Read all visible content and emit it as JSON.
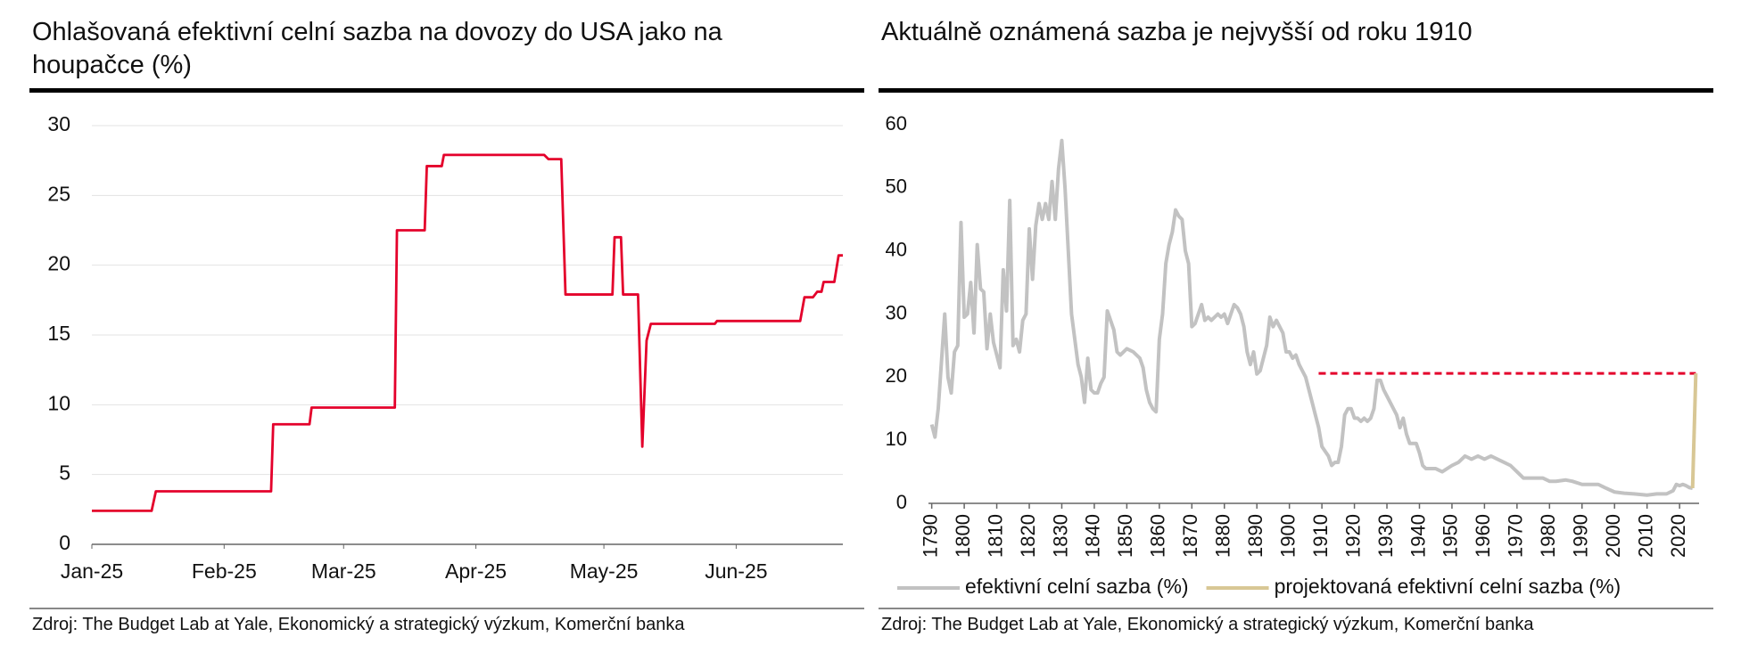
{
  "chart_data": [
    {
      "type": "line",
      "title": "Ohlašovaná efektivní celní sazba na dovozy do USA jako na houpačce (%)",
      "note": "Zdroj: The Budget Lab at Yale, Ekonomický a strategický výzkum, Komerční banka",
      "xlim": [
        0,
        176
      ],
      "xticks": [
        {
          "value": 0,
          "label": "Jan-25"
        },
        {
          "value": 31,
          "label": "Feb-25"
        },
        {
          "value": 59,
          "label": "Mar-25"
        },
        {
          "value": 90,
          "label": "Apr-25"
        },
        {
          "value": 120,
          "label": "May-25"
        },
        {
          "value": 151,
          "label": "Jun-25"
        }
      ],
      "ylim": [
        0,
        30
      ],
      "yticks": [
        0,
        5,
        10,
        15,
        20,
        25,
        30
      ],
      "grid": true,
      "series": [
        {
          "color": "#e4002b",
          "x": [
            0,
            14,
            15,
            42,
            42.5,
            51,
            51.5,
            71,
            71.5,
            78,
            78.5,
            82,
            82.5,
            106,
            107,
            110,
            111,
            122,
            122.5,
            124,
            124.5,
            128,
            129,
            130,
            131,
            146,
            146.5,
            166,
            167,
            169,
            170,
            171,
            171.5,
            174,
            175,
            176
          ],
          "values": [
            2.4,
            2.4,
            3.8,
            3.8,
            8.6,
            8.6,
            9.8,
            9.8,
            22.5,
            22.5,
            27.1,
            27.1,
            27.9,
            27.9,
            27.6,
            27.6,
            17.9,
            17.9,
            22,
            22,
            17.9,
            17.9,
            7,
            14.6,
            15.8,
            15.8,
            16,
            16,
            17.7,
            17.7,
            18.1,
            18.1,
            18.8,
            18.8,
            20.7,
            20.7
          ]
        }
      ]
    },
    {
      "type": "line",
      "title": "Aktuálně oznámená sazba je nejvyšší od roku 1910",
      "note": "Zdroj: The Budget Lab at Yale, Ekonomický a strategický výzkum, Komerční banka",
      "xlim": [
        1789,
        2026
      ],
      "xticks": [
        1790,
        1800,
        1810,
        1820,
        1830,
        1840,
        1850,
        1860,
        1870,
        1880,
        1890,
        1900,
        1910,
        1920,
        1930,
        1940,
        1950,
        1960,
        1970,
        1980,
        1990,
        2000,
        2010,
        2020
      ],
      "ylim": [
        0,
        60
      ],
      "yticks": [
        0,
        10,
        20,
        30,
        40,
        50,
        60
      ],
      "grid": false,
      "series": [
        {
          "name": "efektivní celní sazba (%)",
          "color": "#c2c2c2",
          "x": [
            1790,
            1791,
            1792,
            1794,
            1795,
            1796,
            1797,
            1798,
            1799,
            1800,
            1801,
            1802,
            1803,
            1804,
            1805,
            1806,
            1807,
            1808,
            1809,
            1810,
            1811,
            1812,
            1813,
            1814,
            1815,
            1816,
            1817,
            1818,
            1819,
            1820,
            1821,
            1822,
            1823,
            1824,
            1825,
            1826,
            1827,
            1828,
            1829,
            1830,
            1831,
            1832,
            1833,
            1834,
            1835,
            1836,
            1837,
            1838,
            1839,
            1840,
            1841,
            1842,
            1843,
            1844,
            1845,
            1846,
            1847,
            1848,
            1850,
            1852,
            1854,
            1855,
            1856,
            1857,
            1858,
            1859,
            1860,
            1861,
            1862,
            1863,
            1864,
            1865,
            1866,
            1867,
            1868,
            1869,
            1870,
            1871,
            1872,
            1873,
            1874,
            1875,
            1876,
            1878,
            1879,
            1880,
            1881,
            1882,
            1883,
            1884,
            1885,
            1886,
            1887,
            1888,
            1889,
            1890,
            1891,
            1892,
            1893,
            1894,
            1895,
            1896,
            1897,
            1898,
            1899,
            1900,
            1901,
            1902,
            1903,
            1904,
            1905,
            1906,
            1907,
            1908,
            1909,
            1910,
            1912,
            1913,
            1914,
            1915,
            1916,
            1917,
            1918,
            1919,
            1920,
            1921,
            1922,
            1923,
            1924,
            1925,
            1926,
            1927,
            1928,
            1929,
            1930,
            1931,
            1932,
            1933,
            1934,
            1935,
            1936,
            1937,
            1938,
            1939,
            1940,
            1941,
            1942,
            1943,
            1945,
            1947,
            1950,
            1952,
            1954,
            1956,
            1958,
            1960,
            1962,
            1964,
            1966,
            1968,
            1970,
            1972,
            1975,
            1978,
            1980,
            1982,
            1985,
            1987,
            1990,
            1995,
            1997,
            2000,
            2003,
            2006,
            2010,
            2013,
            2016,
            2018,
            2019,
            2020,
            2021,
            2022,
            2023,
            2024
          ],
          "values": [
            12.5,
            10.5,
            15,
            30,
            20,
            17.5,
            24,
            25,
            44.5,
            29.5,
            30,
            35,
            27,
            41,
            34,
            33.5,
            24.5,
            30,
            25.5,
            23.5,
            21.5,
            37,
            30.5,
            48,
            25,
            26,
            24,
            29,
            30,
            43.5,
            35.5,
            44,
            47.5,
            45,
            47.5,
            45,
            51,
            45,
            53,
            57.5,
            50,
            40,
            30,
            26,
            22,
            20,
            16,
            23,
            18,
            17.5,
            17.5,
            19,
            20,
            30.5,
            29,
            27.5,
            24,
            23.5,
            24.5,
            24,
            23,
            21.5,
            18,
            16,
            15,
            14.5,
            26,
            30,
            38,
            41,
            43,
            46.5,
            45.5,
            45,
            40,
            38,
            28,
            28.5,
            30,
            31.5,
            29,
            29.5,
            29,
            30,
            29.5,
            30,
            28.5,
            30,
            31.5,
            31,
            30,
            28,
            24,
            22,
            24,
            20.5,
            21,
            23,
            25,
            29.5,
            28,
            29,
            28,
            27,
            24,
            24,
            23,
            23.5,
            22,
            21,
            20,
            18,
            16,
            14,
            12,
            9,
            7.5,
            6,
            6.5,
            6.5,
            9,
            14,
            15,
            15,
            13.5,
            13.5,
            13,
            13.5,
            13,
            13.5,
            15,
            19.5,
            19.5,
            18,
            17,
            16,
            15,
            14,
            12,
            13.5,
            11,
            9.5,
            9.5,
            9.5,
            8,
            6,
            5.5,
            5.5,
            5.5,
            5,
            6,
            6.5,
            7.5,
            7,
            7.5,
            7,
            7.5,
            7,
            6.5,
            6,
            5,
            4,
            4,
            4,
            3.5,
            3.5,
            3.7,
            3.5,
            3,
            3,
            2.5,
            1.8,
            1.6,
            1.5,
            1.3,
            1.5,
            1.5,
            2,
            3,
            2.8,
            3,
            2.8,
            2.5,
            2.4
          ]
        },
        {
          "name": "projektovaná efektivní celní sazba (%)",
          "color": "#d8c795",
          "x": [
            2024,
            2025
          ],
          "values": [
            2.4,
            20.6
          ]
        }
      ],
      "reference_line": {
        "value": 20.6,
        "x": [
          1909,
          2025
        ],
        "color": "#e4002b",
        "dashed": true
      }
    }
  ]
}
